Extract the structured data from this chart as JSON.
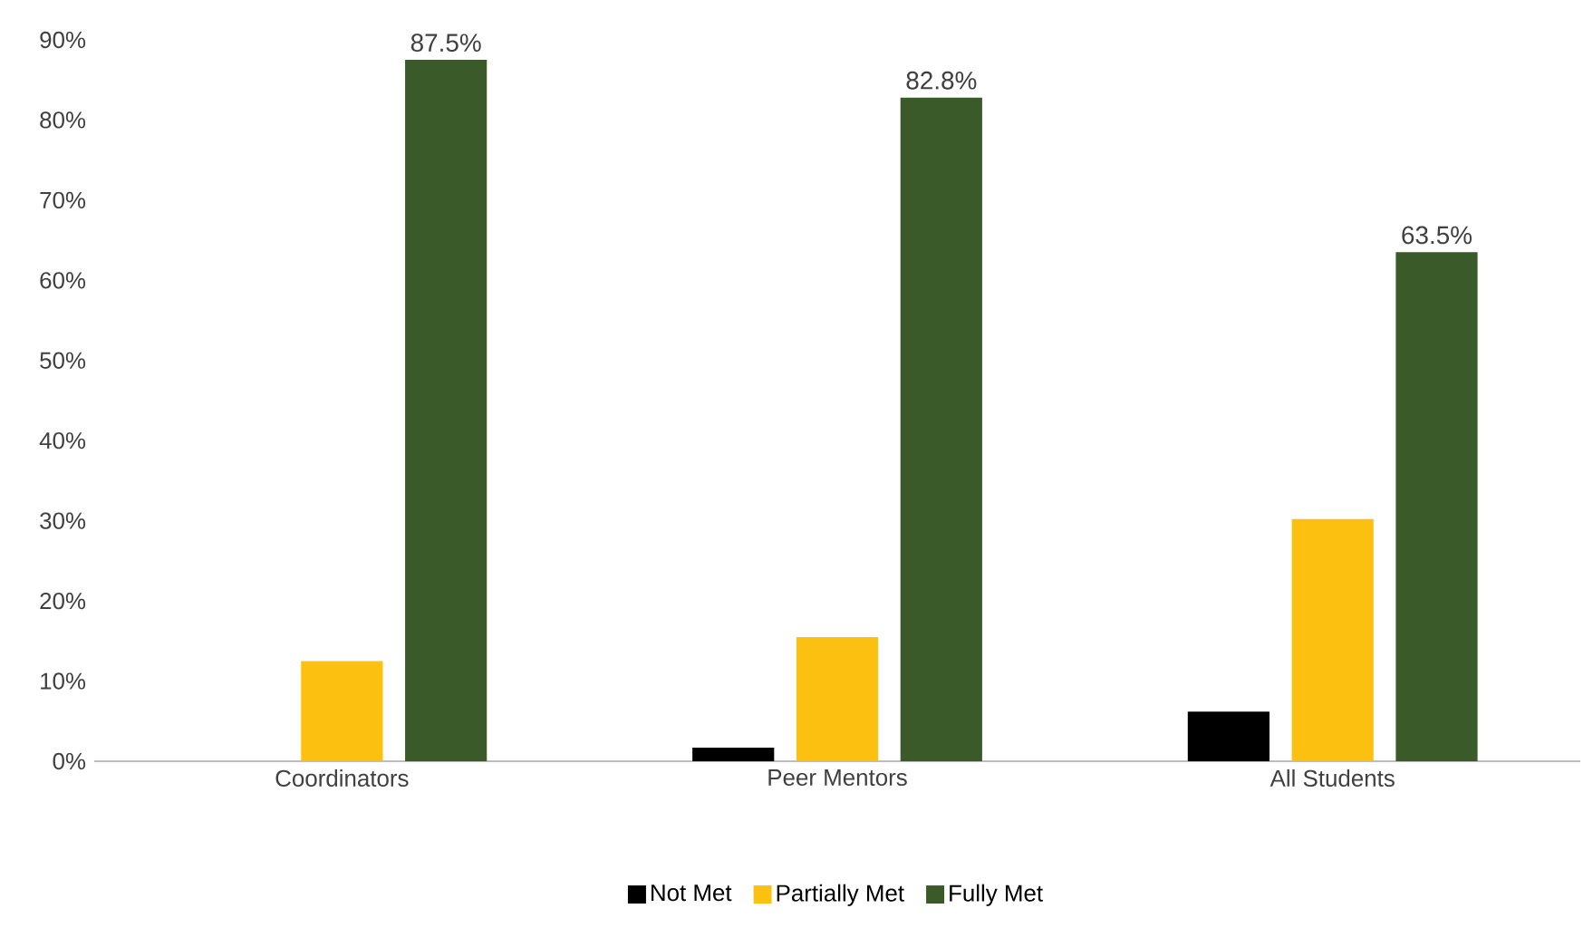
{
  "chart_data": {
    "type": "bar",
    "categories": [
      "Coordinators",
      "Peer Mentors",
      "All Students"
    ],
    "series": [
      {
        "name": "Not Met",
        "color": "#000000",
        "values": [
          0,
          1.7,
          6.2
        ]
      },
      {
        "name": "Partially Met",
        "color": "#fcc010",
        "values": [
          12.5,
          15.5,
          30.2
        ]
      },
      {
        "name": "Fully Met",
        "color": "#3a5a2a",
        "values": [
          87.5,
          82.8,
          63.5
        ],
        "value_labels": [
          "87.5%",
          "82.8%",
          "63.5%"
        ]
      }
    ],
    "ylim": [
      0,
      90
    ],
    "yticks": [
      {
        "value": 0,
        "label": "0%"
      },
      {
        "value": 10,
        "label": "10%"
      },
      {
        "value": 20,
        "label": "20%"
      },
      {
        "value": 30,
        "label": "30%"
      },
      {
        "value": 40,
        "label": "40%"
      },
      {
        "value": 50,
        "label": "50%"
      },
      {
        "value": 60,
        "label": "60%"
      },
      {
        "value": 70,
        "label": "70%"
      },
      {
        "value": 80,
        "label": "80%"
      },
      {
        "value": 90,
        "label": "90%"
      }
    ],
    "grid": false,
    "legend": "bottom"
  }
}
